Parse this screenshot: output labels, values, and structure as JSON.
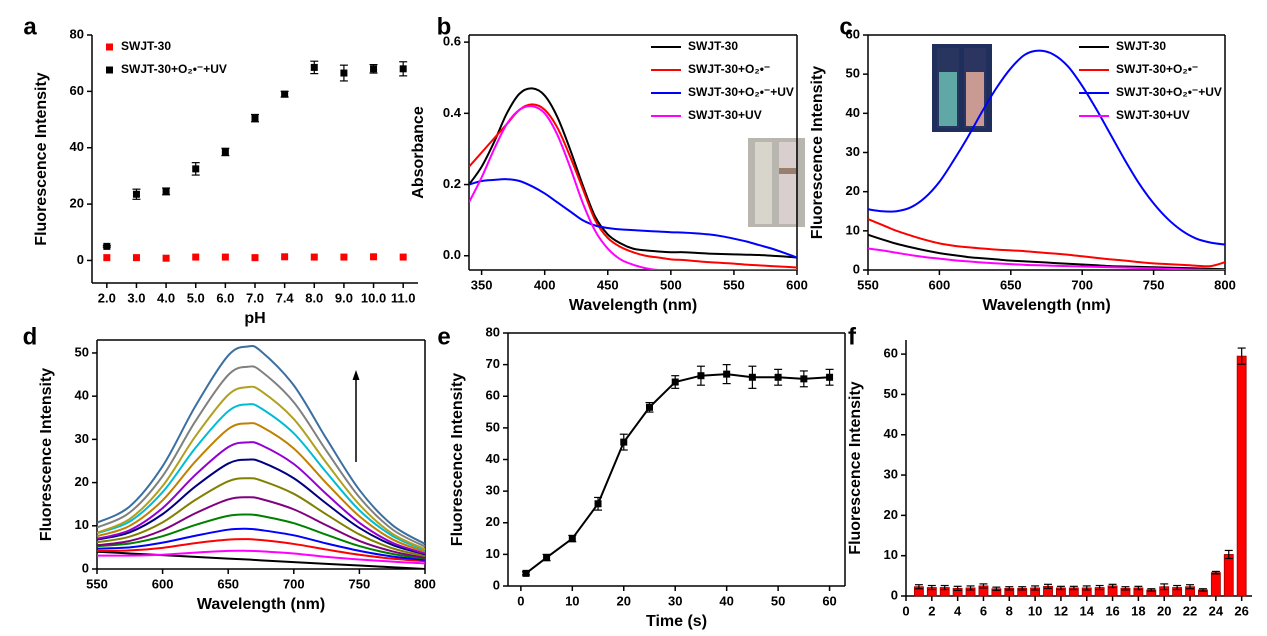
{
  "chart_data": [
    {
      "type": "scatter",
      "label": "a",
      "xlabel": "pH",
      "ylabel": "Fluorescence Intensity",
      "categories": [
        "2.0",
        "3.0",
        "4.0",
        "5.0",
        "6.0",
        "7.0",
        "7.4",
        "8.0",
        "9.0",
        "10.0",
        "11.0"
      ],
      "series": [
        {
          "name": "SWJT-30",
          "color": "#ff0000",
          "values": [
            1,
            1,
            0.8,
            1.2,
            1.2,
            1,
            1.3,
            1.2,
            1.2,
            1.3,
            1.2
          ]
        },
        {
          "name": "SWJT-30+O₂•⁻+UV",
          "color": "#000000",
          "values": [
            5,
            23.5,
            24.5,
            32.5,
            38.5,
            50.5,
            59,
            68.5,
            66.5,
            68,
            68
          ],
          "errors": [
            0.3,
            1.8,
            1.2,
            2.2,
            1.3,
            1.3,
            1,
            2.2,
            2.8,
            1.5,
            2.5
          ]
        }
      ],
      "ylim": [
        -8,
        80
      ],
      "yticks": [
        0,
        20,
        40,
        60,
        80
      ],
      "legend": "upper left"
    },
    {
      "type": "line",
      "label": "b",
      "xlabel": "Wavelength (nm)",
      "ylabel": "Absorbance",
      "x": [
        340,
        350,
        360,
        370,
        380,
        390,
        400,
        410,
        420,
        430,
        440,
        450,
        460,
        470,
        480,
        490,
        500,
        510,
        520,
        530,
        540,
        550,
        560,
        570,
        580,
        590,
        600
      ],
      "series": [
        {
          "name": "SWJT-30",
          "color": "#000000",
          "values": [
            0.2,
            0.25,
            0.32,
            0.4,
            0.455,
            0.47,
            0.45,
            0.39,
            0.3,
            0.2,
            0.11,
            0.06,
            0.035,
            0.02,
            0.015,
            0.012,
            0.01,
            0.01,
            0.008,
            0.006,
            0.005,
            0.004,
            0.003,
            0.002,
            0,
            -0.002,
            -0.005
          ]
        },
        {
          "name": "SWJT-30+O₂•⁻",
          "color": "#ff0000",
          "values": [
            0.25,
            0.29,
            0.33,
            0.37,
            0.41,
            0.425,
            0.41,
            0.36,
            0.28,
            0.19,
            0.1,
            0.05,
            0.025,
            0.01,
            0,
            -0.005,
            -0.01,
            -0.012,
            -0.015,
            -0.018,
            -0.02,
            -0.022,
            -0.025,
            -0.027,
            -0.029,
            -0.031,
            -0.033
          ]
        },
        {
          "name": "SWJT-30+O₂•⁻+UV",
          "color": "#0000ff",
          "values": [
            0.2,
            0.21,
            0.213,
            0.215,
            0.21,
            0.195,
            0.175,
            0.15,
            0.125,
            0.1,
            0.085,
            0.078,
            0.074,
            0.072,
            0.07,
            0.068,
            0.066,
            0.065,
            0.063,
            0.06,
            0.055,
            0.048,
            0.04,
            0.03,
            0.02,
            0.008,
            -0.005
          ]
        },
        {
          "name": "SWJT-30+UV",
          "color": "#ff00ff",
          "values": [
            0.15,
            0.22,
            0.3,
            0.37,
            0.41,
            0.42,
            0.4,
            0.34,
            0.25,
            0.15,
            0.07,
            0.02,
            -0.01,
            -0.025,
            -0.035,
            -0.04,
            -0.04,
            -0.04,
            -0.04,
            -0.04,
            -0.04,
            -0.04,
            -0.04,
            -0.04,
            -0.04,
            -0.04,
            -0.04
          ]
        }
      ],
      "xlim": [
        340,
        600
      ],
      "xticks": [
        350,
        400,
        450,
        500,
        550,
        600
      ],
      "ylim": [
        -0.04,
        0.62
      ],
      "yticks": [
        {
          "value": 0,
          "label": "0.0"
        },
        0.2,
        0.4,
        0.6
      ],
      "legend": "upper right"
    },
    {
      "type": "line",
      "label": "c",
      "xlabel": "Wavelength (nm)",
      "ylabel": "Fluorescence Intensity",
      "x": [
        550,
        560,
        570,
        580,
        590,
        600,
        610,
        620,
        630,
        640,
        650,
        660,
        670,
        680,
        690,
        700,
        710,
        720,
        730,
        740,
        750,
        760,
        770,
        780,
        790,
        800
      ],
      "series": [
        {
          "name": "SWJT-30",
          "color": "#000000",
          "values": [
            9,
            7.8,
            6.7,
            5.8,
            5,
            4.3,
            3.8,
            3.3,
            3,
            2.7,
            2.4,
            2.2,
            2,
            1.8,
            1.6,
            1.4,
            1.2,
            1,
            0.9,
            0.8,
            0.7,
            0.6,
            0.5,
            0.4,
            0.3,
            0.2
          ]
        },
        {
          "name": "SWJT-30+O₂•⁻",
          "color": "#ff0000",
          "values": [
            13,
            11.5,
            10,
            8.8,
            7.7,
            6.8,
            6.2,
            5.8,
            5.5,
            5.2,
            5,
            4.8,
            4.5,
            4.2,
            3.9,
            3.5,
            3.1,
            2.7,
            2.4,
            2,
            1.7,
            1.5,
            1.3,
            1.1,
            1,
            2
          ]
        },
        {
          "name": "SWJT-30+O₂•⁻+UV",
          "color": "#0000ff",
          "values": [
            15.5,
            15,
            15,
            16,
            18.5,
            22.5,
            28,
            34,
            40.5,
            46.5,
            51.5,
            55,
            56,
            55,
            52,
            47,
            41,
            34.5,
            28,
            22,
            17,
            13,
            10,
            8,
            7,
            6.5
          ]
        },
        {
          "name": "SWJT-30+UV",
          "color": "#ff00ff",
          "values": [
            5.5,
            5,
            4.4,
            3.8,
            3.3,
            2.9,
            2.5,
            2.2,
            1.9,
            1.7,
            1.5,
            1.3,
            1.2,
            1.1,
            1,
            0.9,
            0.8,
            0.7,
            0.6,
            0.5,
            0.4,
            0.3,
            0.2,
            0.1,
            0,
            0
          ]
        }
      ],
      "xlim": [
        550,
        800
      ],
      "xticks": [
        550,
        600,
        650,
        700,
        750,
        800
      ],
      "ylim": [
        0,
        60
      ],
      "yticks": [
        0,
        10,
        20,
        30,
        40,
        50,
        60
      ],
      "legend": "upper right"
    },
    {
      "type": "line",
      "label": "d",
      "xlabel": "Wavelength (nm)",
      "ylabel": "Fluorescence Intensity",
      "x": [
        550,
        575,
        600,
        625,
        650,
        665,
        675,
        700,
        725,
        750,
        775,
        800
      ],
      "series": [
        {
          "color": "#000000",
          "values": [
            4,
            3.6,
            3.2,
            2.8,
            2.4,
            2.2,
            2,
            1.6,
            1.2,
            0.8,
            0.4,
            0
          ]
        },
        {
          "color": "#ff00ff",
          "values": [
            3.1,
            3.1,
            3.3,
            3.8,
            4.2,
            4.2,
            4.1,
            3.6,
            2.8,
            2.2,
            1.7,
            1.3
          ]
        },
        {
          "color": "#ff0000",
          "values": [
            4.2,
            4.3,
            4.9,
            6,
            6.8,
            6.9,
            6.7,
            5.8,
            4.5,
            3.3,
            2.4,
            1.8
          ]
        },
        {
          "color": "#0000ff",
          "values": [
            4.7,
            5,
            6.1,
            7.7,
            9.1,
            9.3,
            9,
            7.8,
            5.9,
            4.2,
            2.9,
            2.1
          ]
        },
        {
          "color": "#008000",
          "values": [
            5.3,
            5.9,
            7.6,
            10.2,
            12.3,
            12.6,
            12.3,
            10.6,
            7.9,
            5.3,
            3.5,
            2.4
          ]
        },
        {
          "color": "#800080",
          "values": [
            5.5,
            6.5,
            9,
            12.9,
            16.1,
            16.6,
            16.2,
            13.8,
            10.1,
            6.5,
            4.1,
            2.6
          ]
        },
        {
          "color": "#808000",
          "values": [
            6.2,
            7.5,
            10.8,
            16,
            20.3,
            21,
            20.5,
            17.4,
            12.6,
            8,
            4.8,
            3
          ]
        },
        {
          "color": "#000080",
          "values": [
            6.8,
            8.5,
            12.7,
            19.1,
            24.4,
            25.3,
            24.8,
            21,
            15.1,
            9.5,
            5.6,
            3.4
          ]
        },
        {
          "color": "#9400d3",
          "values": [
            7,
            9,
            14.1,
            21.8,
            28.2,
            29.3,
            28.7,
            24.3,
            17.3,
            10.7,
            6.1,
            3.6
          ]
        },
        {
          "color": "#c08000",
          "values": [
            7.6,
            10,
            15.9,
            24.9,
            32.4,
            33.7,
            33,
            27.9,
            19.8,
            12.2,
            6.9,
            4
          ]
        },
        {
          "color": "#00bcd4",
          "values": [
            8.3,
            11,
            17.8,
            28,
            36.5,
            38.1,
            37.2,
            31.4,
            22.3,
            13.6,
            7.7,
            4.4
          ]
        },
        {
          "color": "#b0a020",
          "values": [
            8.4,
            11.6,
            19.2,
            30.7,
            40.3,
            42.1,
            41.2,
            34.7,
            24.5,
            14.9,
            8.2,
            4.6
          ]
        },
        {
          "color": "#808080",
          "values": [
            9.6,
            13.1,
            21.5,
            34.2,
            44.9,
            46.8,
            45.8,
            38.6,
            27.3,
            16.6,
            9.2,
            5.2
          ]
        },
        {
          "color": "#3a6fa0",
          "values": [
            10.7,
            14.5,
            23.8,
            37.7,
            49.4,
            51.5,
            50.4,
            42.5,
            30.1,
            18.3,
            10.2,
            5.8
          ]
        }
      ],
      "xlim": [
        550,
        800
      ],
      "xticks": [
        550,
        600,
        650,
        700,
        750,
        800
      ],
      "ylim": [
        0,
        53
      ],
      "yticks": [
        0,
        10,
        20,
        30,
        40,
        50
      ]
    },
    {
      "type": "line",
      "label": "e",
      "xlabel": "Time (s)",
      "ylabel": "Fluorescence Intensity",
      "markers": "square",
      "x": [
        1,
        5,
        10,
        15,
        20,
        25,
        30,
        35,
        40,
        45,
        50,
        55,
        60
      ],
      "series": [
        {
          "color": "#000000",
          "values": [
            4,
            9,
            15,
            26,
            45.5,
            56.5,
            64.5,
            66.5,
            67,
            66,
            66,
            65.5,
            66
          ],
          "errors": [
            0.5,
            1,
            1,
            2,
            2.5,
            1.5,
            2,
            3,
            3,
            3.5,
            2.5,
            2.5,
            2.5
          ]
        }
      ],
      "xlim": [
        -2.5,
        63
      ],
      "xticks": [
        0,
        10,
        20,
        30,
        40,
        50,
        60
      ],
      "ylim": [
        0,
        80
      ],
      "yticks": [
        0,
        10,
        20,
        30,
        40,
        50,
        60,
        70,
        80
      ]
    },
    {
      "type": "bar",
      "label": "f",
      "ylabel": "Fluorescence Intensity",
      "x": [
        1,
        2,
        3,
        4,
        5,
        6,
        7,
        8,
        9,
        10,
        11,
        12,
        13,
        14,
        15,
        16,
        17,
        18,
        19,
        20,
        21,
        22,
        23,
        24,
        25,
        26
      ],
      "series": [
        {
          "color": "#ff0000",
          "values": [
            2.3,
            2.1,
            2.1,
            1.9,
            2,
            2.5,
            1.8,
            1.9,
            1.9,
            2,
            2.4,
            2,
            2,
            2,
            2.1,
            2.5,
            1.9,
            2,
            1.5,
            2.3,
            2.1,
            2.3,
            1.5,
            5.8,
            10.3,
            59.5
          ],
          "errors": [
            0.5,
            0.5,
            0.5,
            0.5,
            0.5,
            0.5,
            0.4,
            0.4,
            0.4,
            0.5,
            0.5,
            0.4,
            0.4,
            0.5,
            0.5,
            0.4,
            0.4,
            0.4,
            0.3,
            0.7,
            0.5,
            0.5,
            0.3,
            0.3,
            1,
            2
          ]
        }
      ],
      "xlim": [
        0,
        26.8
      ],
      "xticks": [
        0,
        2,
        4,
        6,
        8,
        10,
        12,
        14,
        16,
        18,
        20,
        22,
        24,
        26
      ],
      "ylim": [
        0,
        63.5
      ],
      "yticks": [
        0,
        10,
        20,
        30,
        40,
        50,
        60
      ]
    }
  ]
}
